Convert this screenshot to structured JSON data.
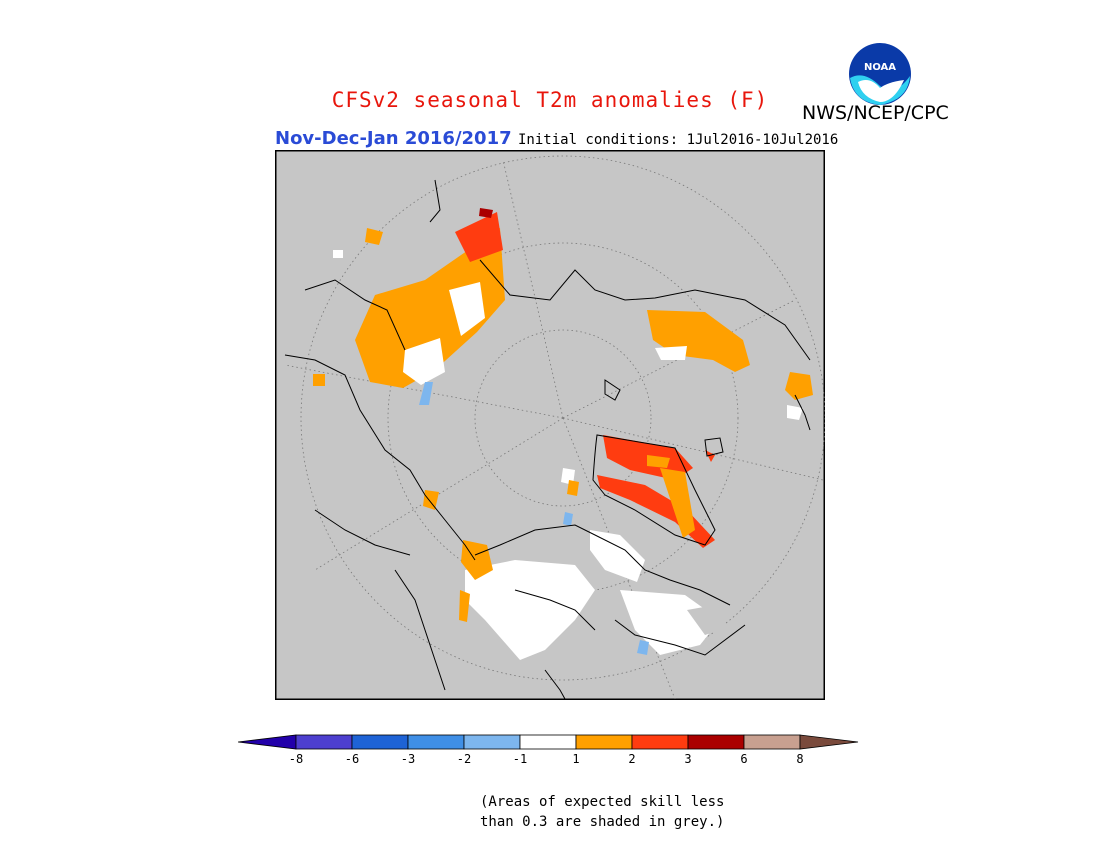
{
  "title": "CFSv2 seasonal T2m anomalies (F)",
  "agency": "NWS/NCEP/CPC",
  "logo_text": "NOAA",
  "period": "Nov-Dec-Jan 2016/2017",
  "initial_conditions": "Initial conditions: 1Jul2016-10Jul2016",
  "note_line1": "(Areas of expected skill less",
  "note_line2": "than 0.3 are shaded in grey.)",
  "colors": {
    "title": "#e8160c",
    "period": "#2a4bd6",
    "map_background": "#c6c6c6",
    "ocean": "#c6c6c6",
    "bins": [
      "#2200aa",
      "#4d3fcf",
      "#1e63d6",
      "#3f8fe6",
      "#7db6ee",
      "#ffffff",
      "#ffa000",
      "#ff3c10",
      "#aa0000",
      "#c8a090",
      "#7a4a3c"
    ]
  },
  "legend": {
    "ticks": [
      "-8",
      "-6",
      "-3",
      "-2",
      "-1",
      "1",
      "2",
      "3",
      "6",
      "8"
    ]
  }
}
